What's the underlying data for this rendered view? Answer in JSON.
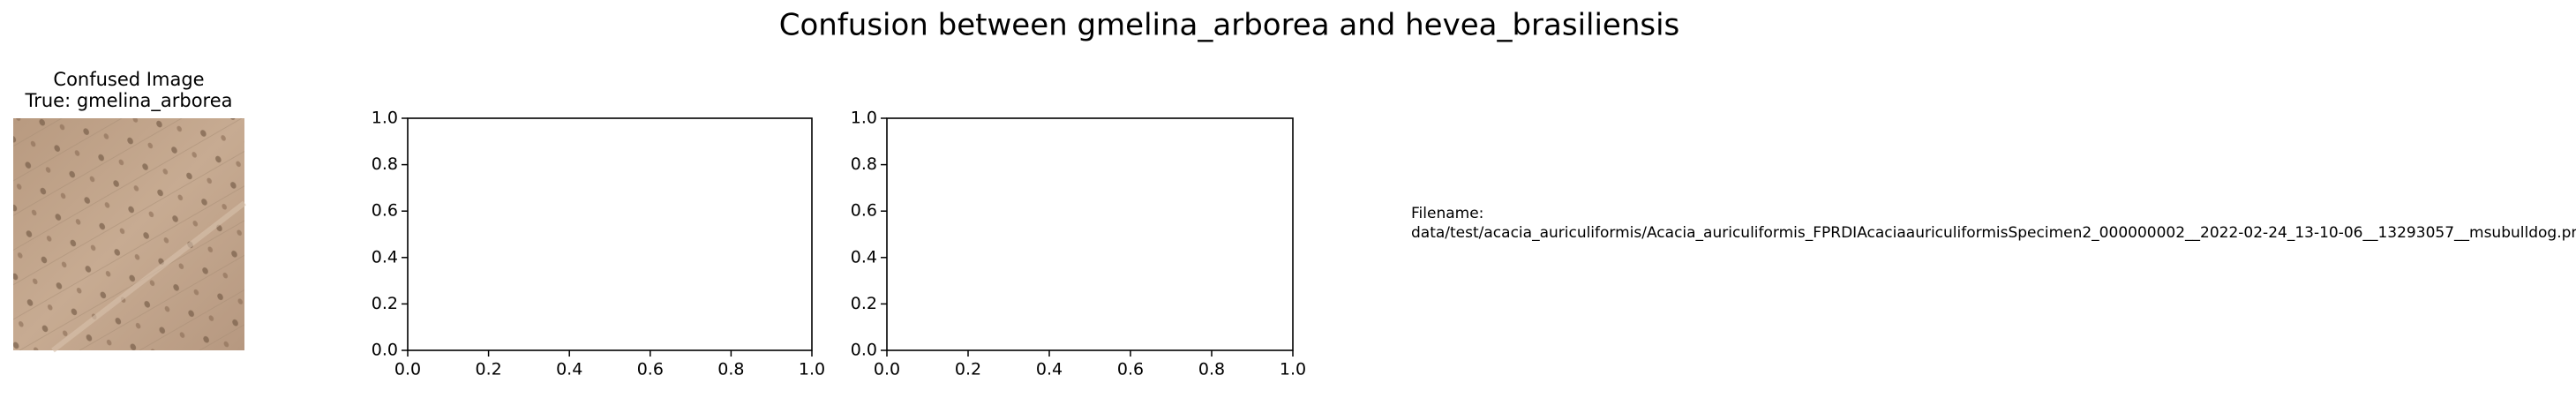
{
  "title": "Confusion between gmelina_arborea and hevea_brasiliensis",
  "image_panel": {
    "title_lines": [
      "Confused Image",
      "True: gmelina_arborea"
    ]
  },
  "axes": [
    {
      "xlim": [
        0,
        1
      ],
      "ylim": [
        0,
        1
      ],
      "xticks": [
        {
          "value": 0,
          "label": "0.0"
        },
        {
          "value": 0.2,
          "label": "0.2"
        },
        {
          "value": 0.4,
          "label": "0.4"
        },
        {
          "value": 0.6,
          "label": "0.6"
        },
        {
          "value": 0.8,
          "label": "0.8"
        },
        {
          "value": 1,
          "label": "1.0"
        }
      ],
      "yticks": [
        {
          "value": 0,
          "label": "0.0"
        },
        {
          "value": 0.2,
          "label": "0.2"
        },
        {
          "value": 0.4,
          "label": "0.4"
        },
        {
          "value": 0.6,
          "label": "0.6"
        },
        {
          "value": 0.8,
          "label": "0.8"
        },
        {
          "value": 1,
          "label": "1.0"
        }
      ]
    },
    {
      "xlim": [
        0,
        1
      ],
      "ylim": [
        0,
        1
      ],
      "xticks": [
        {
          "value": 0,
          "label": "0.0"
        },
        {
          "value": 0.2,
          "label": "0.2"
        },
        {
          "value": 0.4,
          "label": "0.4"
        },
        {
          "value": 0.6,
          "label": "0.6"
        },
        {
          "value": 0.8,
          "label": "0.8"
        },
        {
          "value": 1,
          "label": "1.0"
        }
      ],
      "yticks": [
        {
          "value": 0,
          "label": "0.0"
        },
        {
          "value": 0.2,
          "label": "0.2"
        },
        {
          "value": 0.4,
          "label": "0.4"
        },
        {
          "value": 0.6,
          "label": "0.6"
        },
        {
          "value": 0.8,
          "label": "0.8"
        },
        {
          "value": 1,
          "label": "1.0"
        }
      ]
    }
  ],
  "filename": {
    "label": "Filename:",
    "path": "data/test/acacia_auriculiformis/Acacia_auriculiformis_FPRDIAcaciaauriculiformisSpecimen2_000000002__2022-02-24_13-10-06__13293057__msubulldog.png"
  }
}
